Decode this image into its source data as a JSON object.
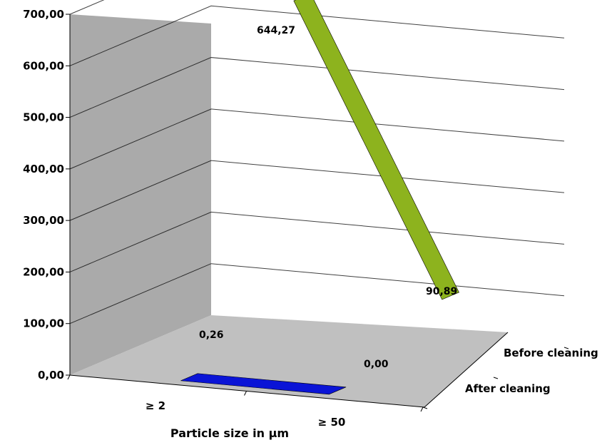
{
  "chart_data": {
    "type": "line",
    "style": "3d",
    "categories": [
      "≥ 2",
      "≥  50"
    ],
    "series": [
      {
        "name": "Before cleaning",
        "values": [
          644.27,
          90.89
        ],
        "value_labels": [
          "644,27",
          "90,89"
        ],
        "color": "#8db31e"
      },
      {
        "name": "After cleaning",
        "values": [
          0.26,
          0.0
        ],
        "value_labels": [
          "0,26",
          "0,00"
        ],
        "color": "#0a14d6"
      }
    ],
    "xlabel": "Particle size in µm",
    "ylabel": "",
    "ylim": [
      0,
      700
    ],
    "yticks": [
      0,
      100,
      200,
      300,
      400,
      500,
      600,
      700
    ],
    "ytick_labels": [
      "0,00",
      "100,00",
      "200,00",
      "300,00",
      "400,00",
      "500,00",
      "600,00",
      "700,00"
    ],
    "grid": true,
    "colors": {
      "side_wall": "#aaaaaa",
      "floor": "#c0c0c0",
      "gridline": "#000000"
    }
  }
}
